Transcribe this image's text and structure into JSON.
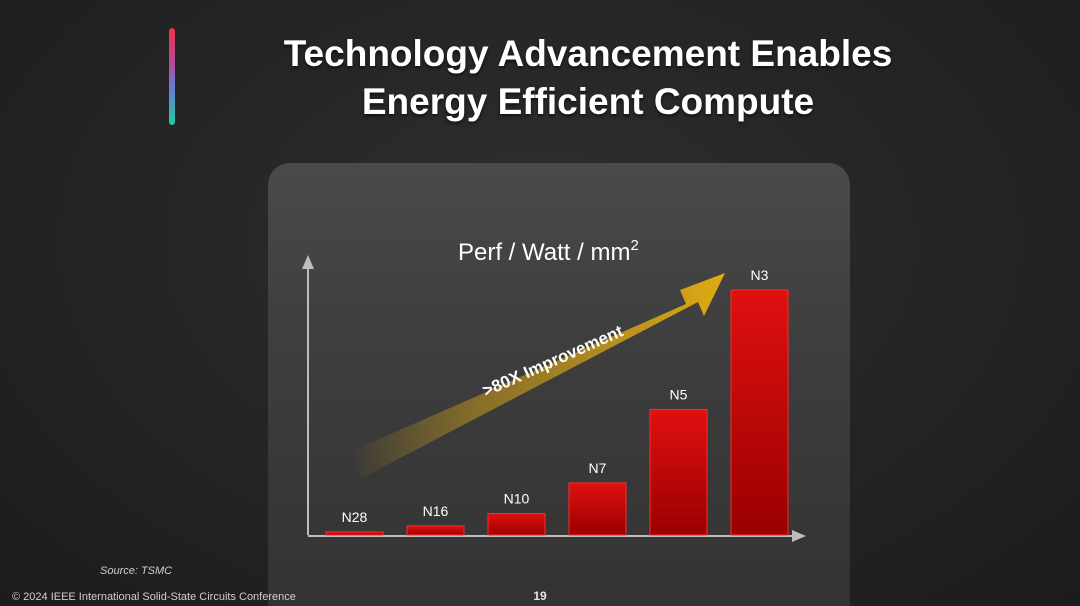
{
  "slide": {
    "title_line1": "Technology Advancement Enables",
    "title_line2": "Energy Efficient Compute",
    "source": "Source: TSMC",
    "footer": "© 2024 IEEE International Solid-State Circuits Conference",
    "page_number": "19"
  },
  "colors": {
    "bar": "#cc0000",
    "arrow": "#d6a418",
    "axis": "#bdbdbd",
    "text": "#ffffff"
  },
  "chart_data": {
    "type": "bar",
    "title": "Perf / Watt / mm",
    "title_superscript": "2",
    "categories": [
      "N28",
      "N16",
      "N10",
      "N7",
      "N5",
      "N3"
    ],
    "values": [
      1,
      3,
      7,
      17,
      41,
      80
    ],
    "ylim": [
      0,
      100
    ],
    "xlabel": "",
    "ylabel": "",
    "grid": false,
    "legend": "none",
    "annotation": ">80X Improvement"
  }
}
